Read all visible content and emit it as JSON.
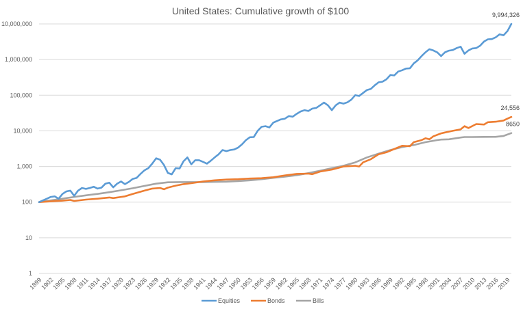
{
  "chart_data": {
    "type": "line",
    "title": "United States: Cumulative growth of $100",
    "xlabel": "",
    "ylabel": "",
    "yscale": "log",
    "ylim": [
      1,
      10000000
    ],
    "xlim": [
      1899,
      2020
    ],
    "grid": true,
    "legend_position": "bottom",
    "y_ticks": [
      {
        "value": 1,
        "label": "1"
      },
      {
        "value": 10,
        "label": "10"
      },
      {
        "value": 100,
        "label": "100"
      },
      {
        "value": 1000,
        "label": "1,000"
      },
      {
        "value": 10000,
        "label": "10,000"
      },
      {
        "value": 100000,
        "label": "100,000"
      },
      {
        "value": 1000000,
        "label": "1,000,000"
      },
      {
        "value": 10000000,
        "label": "10,000,000"
      }
    ],
    "x_ticks": [
      "1899",
      "1902",
      "1905",
      "1908",
      "1911",
      "1914",
      "1917",
      "1920",
      "1923",
      "1926",
      "1929",
      "1932",
      "1935",
      "1938",
      "1941",
      "1944",
      "1947",
      "1950",
      "1953",
      "1956",
      "1959",
      "1962",
      "1965",
      "1968",
      "1971",
      "1974",
      "1977",
      "1980",
      "1983",
      "1986",
      "1989",
      "1992",
      "1995",
      "1998",
      "2001",
      "2004",
      "2007",
      "2010",
      "2013",
      "2016",
      "2019"
    ],
    "series": [
      {
        "name": "Equities",
        "color": "#5b9bd5",
        "end_label": "9,994,326",
        "points": [
          [
            1899,
            100
          ],
          [
            1901,
            125
          ],
          [
            1902,
            140
          ],
          [
            1903,
            145
          ],
          [
            1904,
            125
          ],
          [
            1905,
            170
          ],
          [
            1906,
            200
          ],
          [
            1907,
            210
          ],
          [
            1908,
            150
          ],
          [
            1909,
            210
          ],
          [
            1910,
            250
          ],
          [
            1911,
            235
          ],
          [
            1912,
            250
          ],
          [
            1913,
            270
          ],
          [
            1914,
            240
          ],
          [
            1915,
            255
          ],
          [
            1916,
            330
          ],
          [
            1917,
            350
          ],
          [
            1918,
            260
          ],
          [
            1919,
            330
          ],
          [
            1920,
            380
          ],
          [
            1921,
            320
          ],
          [
            1922,
            370
          ],
          [
            1923,
            450
          ],
          [
            1924,
            480
          ],
          [
            1925,
            620
          ],
          [
            1926,
            780
          ],
          [
            1927,
            900
          ],
          [
            1928,
            1200
          ],
          [
            1929,
            1700
          ],
          [
            1930,
            1550
          ],
          [
            1931,
            1100
          ],
          [
            1932,
            660
          ],
          [
            1933,
            600
          ],
          [
            1934,
            900
          ],
          [
            1935,
            880
          ],
          [
            1936,
            1400
          ],
          [
            1937,
            1800
          ],
          [
            1938,
            1150
          ],
          [
            1939,
            1500
          ],
          [
            1940,
            1500
          ],
          [
            1941,
            1350
          ],
          [
            1942,
            1200
          ],
          [
            1943,
            1450
          ],
          [
            1944,
            1800
          ],
          [
            1945,
            2200
          ],
          [
            1946,
            2900
          ],
          [
            1947,
            2700
          ],
          [
            1948,
            2900
          ],
          [
            1949,
            3000
          ],
          [
            1950,
            3400
          ],
          [
            1951,
            4200
          ],
          [
            1952,
            5500
          ],
          [
            1953,
            6600
          ],
          [
            1954,
            6700
          ],
          [
            1955,
            10000
          ],
          [
            1956,
            13000
          ],
          [
            1957,
            13500
          ],
          [
            1958,
            12500
          ],
          [
            1959,
            17000
          ],
          [
            1960,
            19000
          ],
          [
            1961,
            21000
          ],
          [
            1962,
            22000
          ],
          [
            1963,
            26000
          ],
          [
            1964,
            25000
          ],
          [
            1965,
            30000
          ],
          [
            1966,
            35000
          ],
          [
            1967,
            38000
          ],
          [
            1968,
            36000
          ],
          [
            1969,
            42000
          ],
          [
            1970,
            44000
          ],
          [
            1971,
            52000
          ],
          [
            1972,
            62000
          ],
          [
            1973,
            52000
          ],
          [
            1974,
            38000
          ],
          [
            1975,
            52000
          ],
          [
            1976,
            62000
          ],
          [
            1977,
            58000
          ],
          [
            1978,
            63000
          ],
          [
            1979,
            75000
          ],
          [
            1980,
            100000
          ],
          [
            1981,
            95000
          ],
          [
            1982,
            115000
          ],
          [
            1983,
            140000
          ],
          [
            1984,
            150000
          ],
          [
            1985,
            190000
          ],
          [
            1986,
            230000
          ],
          [
            1987,
            240000
          ],
          [
            1988,
            280000
          ],
          [
            1989,
            370000
          ],
          [
            1990,
            360000
          ],
          [
            1991,
            460000
          ],
          [
            1992,
            500000
          ],
          [
            1993,
            560000
          ],
          [
            1994,
            570000
          ],
          [
            1995,
            780000
          ],
          [
            1996,
            950000
          ],
          [
            1997,
            1250000
          ],
          [
            1998,
            1600000
          ],
          [
            1999,
            1950000
          ],
          [
            2000,
            1800000
          ],
          [
            2001,
            1600000
          ],
          [
            2002,
            1250000
          ],
          [
            2003,
            1600000
          ],
          [
            2004,
            1780000
          ],
          [
            2005,
            1850000
          ],
          [
            2006,
            2100000
          ],
          [
            2007,
            2300000
          ],
          [
            2008,
            1450000
          ],
          [
            2009,
            1800000
          ],
          [
            2010,
            2050000
          ],
          [
            2011,
            2100000
          ],
          [
            2012,
            2450000
          ],
          [
            2013,
            3200000
          ],
          [
            2014,
            3700000
          ],
          [
            2015,
            3750000
          ],
          [
            2016,
            4200000
          ],
          [
            2017,
            5100000
          ],
          [
            2018,
            4800000
          ],
          [
            2019,
            6300000
          ],
          [
            2020,
            9994326
          ]
        ]
      },
      {
        "name": "Bonds",
        "color": "#ed7d31",
        "end_label": "24,556",
        "points": [
          [
            1899,
            100
          ],
          [
            1902,
            105
          ],
          [
            1905,
            110
          ],
          [
            1907,
            115
          ],
          [
            1908,
            108
          ],
          [
            1911,
            118
          ],
          [
            1914,
            125
          ],
          [
            1917,
            135
          ],
          [
            1918,
            130
          ],
          [
            1920,
            140
          ],
          [
            1921,
            145
          ],
          [
            1923,
            170
          ],
          [
            1926,
            210
          ],
          [
            1928,
            240
          ],
          [
            1930,
            250
          ],
          [
            1931,
            230
          ],
          [
            1932,
            255
          ],
          [
            1934,
            290
          ],
          [
            1936,
            320
          ],
          [
            1938,
            340
          ],
          [
            1941,
            380
          ],
          [
            1944,
            410
          ],
          [
            1947,
            430
          ],
          [
            1950,
            440
          ],
          [
            1953,
            460
          ],
          [
            1956,
            470
          ],
          [
            1957,
            480
          ],
          [
            1959,
            500
          ],
          [
            1962,
            560
          ],
          [
            1965,
            620
          ],
          [
            1968,
            630
          ],
          [
            1969,
            610
          ],
          [
            1971,
            720
          ],
          [
            1974,
            820
          ],
          [
            1977,
            1000
          ],
          [
            1980,
            1050
          ],
          [
            1981,
            1000
          ],
          [
            1982,
            1300
          ],
          [
            1984,
            1600
          ],
          [
            1986,
            2200
          ],
          [
            1988,
            2500
          ],
          [
            1990,
            3100
          ],
          [
            1992,
            3800
          ],
          [
            1994,
            3700
          ],
          [
            1995,
            4800
          ],
          [
            1997,
            5500
          ],
          [
            1998,
            6200
          ],
          [
            1999,
            5800
          ],
          [
            2000,
            7000
          ],
          [
            2002,
            8500
          ],
          [
            2003,
            9000
          ],
          [
            2005,
            10000
          ],
          [
            2007,
            11000
          ],
          [
            2008,
            13500
          ],
          [
            2009,
            12000
          ],
          [
            2011,
            15500
          ],
          [
            2013,
            15000
          ],
          [
            2014,
            17500
          ],
          [
            2016,
            18000
          ],
          [
            2018,
            19500
          ],
          [
            2019,
            22000
          ],
          [
            2020,
            24556
          ]
        ]
      },
      {
        "name": "Bills",
        "color": "#a5a5a5",
        "end_label": "8650",
        "points": [
          [
            1899,
            100
          ],
          [
            1902,
            112
          ],
          [
            1905,
            125
          ],
          [
            1908,
            140
          ],
          [
            1911,
            155
          ],
          [
            1914,
            170
          ],
          [
            1917,
            190
          ],
          [
            1920,
            215
          ],
          [
            1923,
            245
          ],
          [
            1926,
            285
          ],
          [
            1929,
            330
          ],
          [
            1932,
            360
          ],
          [
            1935,
            365
          ],
          [
            1938,
            365
          ],
          [
            1941,
            365
          ],
          [
            1944,
            370
          ],
          [
            1947,
            375
          ],
          [
            1950,
            390
          ],
          [
            1953,
            410
          ],
          [
            1956,
            440
          ],
          [
            1959,
            480
          ],
          [
            1962,
            520
          ],
          [
            1965,
            570
          ],
          [
            1968,
            650
          ],
          [
            1971,
            760
          ],
          [
            1974,
            900
          ],
          [
            1977,
            1050
          ],
          [
            1980,
            1300
          ],
          [
            1983,
            1800
          ],
          [
            1986,
            2300
          ],
          [
            1989,
            2900
          ],
          [
            1992,
            3500
          ],
          [
            1995,
            4000
          ],
          [
            1998,
            4800
          ],
          [
            2001,
            5500
          ],
          [
            2002,
            5700
          ],
          [
            2004,
            5800
          ],
          [
            2007,
            6500
          ],
          [
            2008,
            6700
          ],
          [
            2010,
            6700
          ],
          [
            2013,
            6750
          ],
          [
            2016,
            6800
          ],
          [
            2018,
            7200
          ],
          [
            2020,
            8650
          ]
        ]
      }
    ]
  }
}
